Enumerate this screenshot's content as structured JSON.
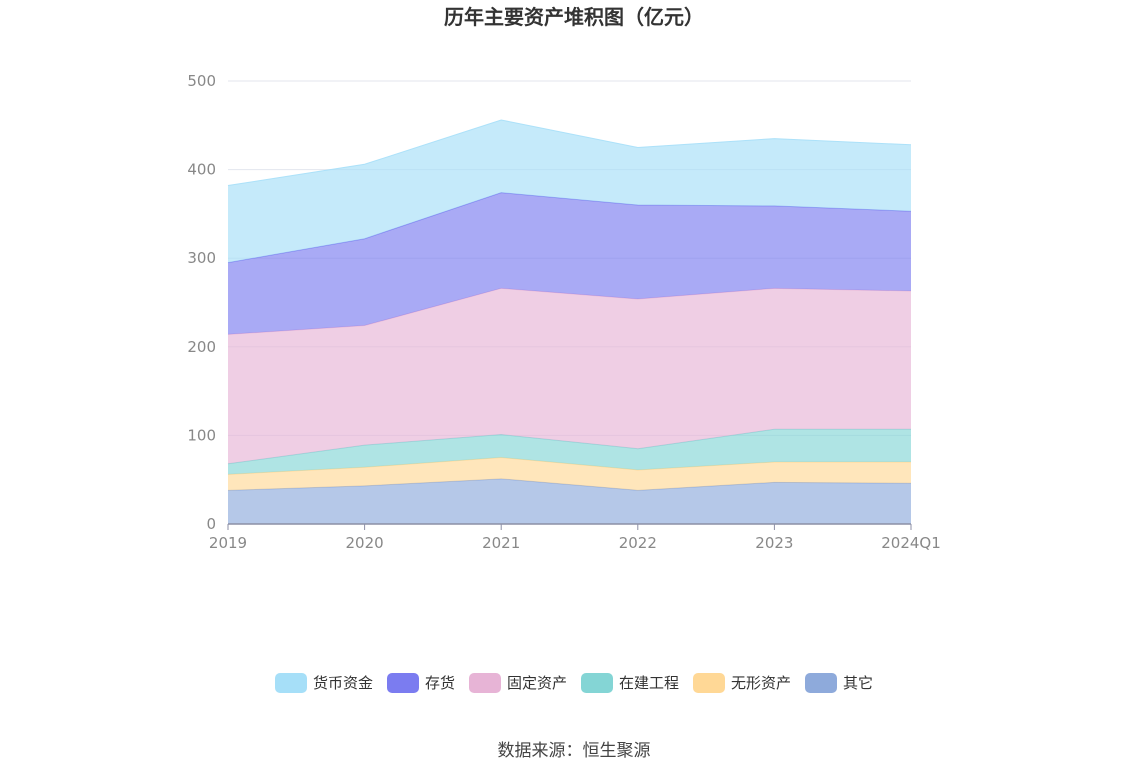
{
  "chart_data": {
    "type": "area",
    "stacked": true,
    "title": "历年主要资产堆积图（亿元）",
    "categories": [
      "2019",
      "2020",
      "2021",
      "2022",
      "2023",
      "2024Q1"
    ],
    "y_ticks": [
      "0",
      "100",
      "200",
      "300",
      "400",
      "500"
    ],
    "ylim": [
      0,
      500
    ],
    "xlabel": "",
    "ylabel": "",
    "legend_position": "bottom",
    "series": [
      {
        "name": "其它",
        "color": "#8eaadb",
        "values": [
          38,
          43,
          51,
          38,
          47,
          46
        ]
      },
      {
        "name": "无形资产",
        "color": "#ffd896",
        "values": [
          18,
          21,
          24,
          23,
          23,
          24
        ]
      },
      {
        "name": "在建工程",
        "color": "#84d5d5",
        "values": [
          12,
          25,
          26,
          24,
          37,
          37
        ]
      },
      {
        "name": "固定资产",
        "color": "#e7b4d6",
        "values": [
          146,
          135,
          165,
          169,
          159,
          156
        ]
      },
      {
        "name": "存货",
        "color": "#7b7cf0",
        "values": [
          81,
          98,
          108,
          106,
          93,
          90
        ]
      },
      {
        "name": "货币资金",
        "color": "#a6dff8",
        "values": [
          87,
          84,
          82,
          65,
          76,
          75
        ]
      }
    ],
    "legend_order": [
      "货币资金",
      "存货",
      "固定资产",
      "在建工程",
      "无形资产",
      "其它"
    ],
    "source": "数据来源：恒生聚源"
  }
}
